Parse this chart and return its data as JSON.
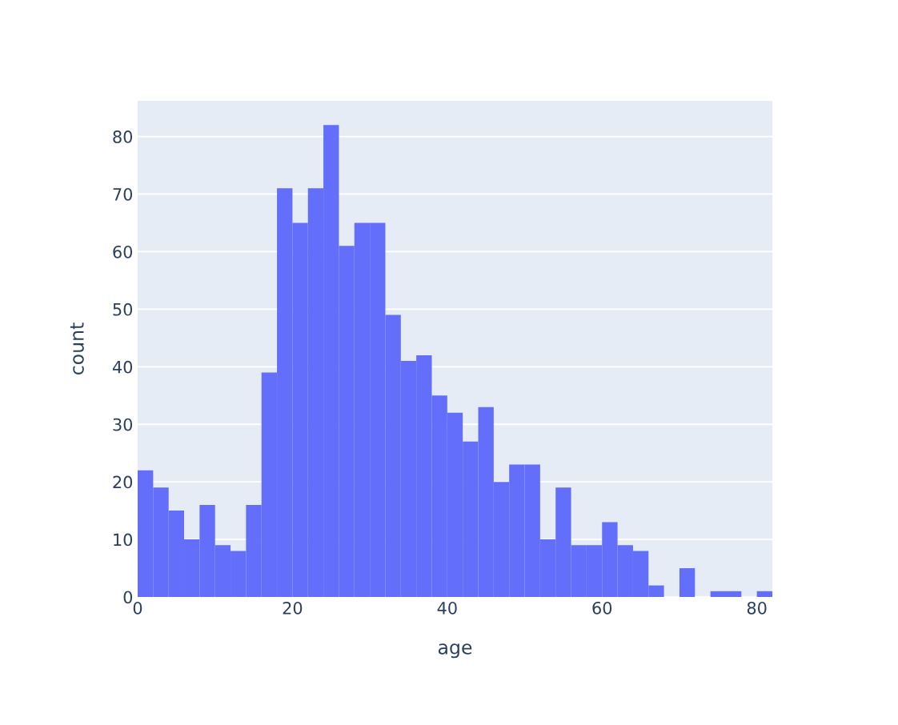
{
  "chart_data": {
    "type": "histogram",
    "xlabel": "age",
    "ylabel": "count",
    "color": "#636efa",
    "bins": [
      0,
      2,
      4,
      6,
      8,
      10,
      12,
      14,
      16,
      18,
      20,
      22,
      24,
      26,
      28,
      30,
      32,
      34,
      36,
      38,
      40,
      42,
      44,
      46,
      48,
      50,
      52,
      54,
      56,
      58,
      60,
      62,
      64,
      66,
      68,
      70,
      72,
      74,
      76,
      78,
      80,
      82
    ],
    "values": [
      22,
      19,
      15,
      10,
      16,
      9,
      8,
      16,
      39,
      71,
      65,
      71,
      82,
      61,
      65,
      65,
      49,
      41,
      42,
      35,
      32,
      27,
      33,
      20,
      23,
      23,
      10,
      19,
      9,
      9,
      13,
      9,
      8,
      2,
      0,
      5,
      0,
      1,
      1,
      0,
      1
    ],
    "xlim": [
      0,
      82
    ],
    "xticks": [
      0,
      20,
      40,
      60,
      80
    ],
    "ylim": [
      0,
      86.2
    ],
    "yticks": [
      0,
      10,
      20,
      30,
      40,
      50,
      60,
      70,
      80
    ],
    "grid": "y"
  }
}
